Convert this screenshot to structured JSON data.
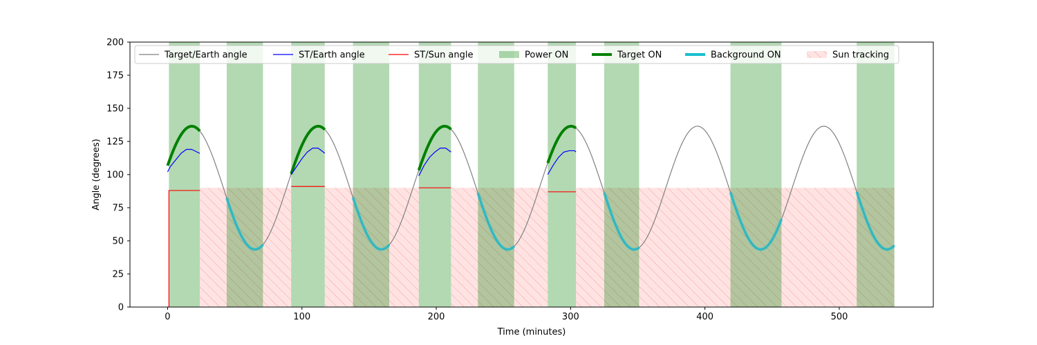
{
  "chart_data": {
    "type": "line",
    "xlabel": "Time (minutes)",
    "ylabel": "Angle (degrees)",
    "xlim": [
      -28,
      570
    ],
    "ylim": [
      0,
      200
    ],
    "xticks": [
      0,
      100,
      200,
      300,
      400,
      500
    ],
    "yticks": [
      0,
      25,
      50,
      75,
      100,
      125,
      150,
      175,
      200
    ],
    "legend_position": "top",
    "target_earth_wave": {
      "mid": 90,
      "amplitude": 46.5,
      "period": 94.1,
      "peak_time": 18
    },
    "legend": [
      {
        "label": "Target/Earth angle",
        "style": "line",
        "color": "#808080"
      },
      {
        "label": "ST/Earth angle",
        "style": "line",
        "color": "#0000ff"
      },
      {
        "label": "ST/Sun angle",
        "style": "line",
        "color": "#ff0000"
      },
      {
        "label": "Power ON",
        "style": "patch",
        "color": "#008000"
      },
      {
        "label": "Target ON",
        "style": "thick-line",
        "color": "#008000"
      },
      {
        "label": "Background ON",
        "style": "thick-line",
        "color": "#17becf"
      },
      {
        "label": "Sun tracking",
        "style": "hatched-patch",
        "color": "#ff9999"
      }
    ],
    "power_on_intervals": [
      [
        1,
        24
      ],
      [
        44,
        71
      ],
      [
        92,
        117
      ],
      [
        138,
        165
      ],
      [
        187,
        211
      ],
      [
        231,
        258
      ],
      [
        283,
        304
      ],
      [
        325,
        351
      ],
      [
        419,
        457
      ],
      [
        513,
        541
      ]
    ],
    "target_on_intervals": [
      [
        0,
        24
      ],
      [
        92,
        117
      ],
      [
        187,
        211
      ],
      [
        283,
        304
      ]
    ],
    "background_on_intervals": [
      [
        44,
        71
      ],
      [
        138,
        165
      ],
      [
        231,
        258
      ],
      [
        325,
        351
      ],
      [
        419,
        457
      ],
      [
        513,
        541
      ]
    ],
    "sun_tracking": {
      "y_top": 90,
      "intervals": [
        [
          24,
          92
        ],
        [
          117,
          187
        ],
        [
          211,
          283
        ],
        [
          304,
          541
        ]
      ]
    },
    "st_earth_segments": [
      {
        "x": [
          0,
          2,
          6,
          10,
          14,
          18,
          22,
          24
        ],
        "y": [
          102,
          106,
          111,
          116,
          119,
          119,
          117,
          116
        ]
      },
      {
        "x": [
          92,
          96,
          100,
          104,
          108,
          112,
          116,
          117
        ],
        "y": [
          100,
          106,
          112,
          117,
          120,
          120,
          117,
          116
        ]
      },
      {
        "x": [
          187,
          191,
          195,
          199,
          203,
          207,
          211
        ],
        "y": [
          99,
          107,
          113,
          117,
          120,
          120,
          117
        ]
      },
      {
        "x": [
          283,
          287,
          291,
          295,
          299,
          303,
          304
        ],
        "y": [
          100,
          107,
          113,
          117,
          118,
          118,
          117
        ]
      }
    ],
    "st_sun_segments": [
      {
        "x": [
          0,
          1,
          1,
          24
        ],
        "y": [
          0,
          0,
          88,
          88
        ]
      },
      {
        "x": [
          92,
          117
        ],
        "y": [
          91,
          91
        ]
      },
      {
        "x": [
          187,
          211
        ],
        "y": [
          90,
          90
        ]
      },
      {
        "x": [
          283,
          304
        ],
        "y": [
          87,
          87
        ]
      }
    ]
  }
}
